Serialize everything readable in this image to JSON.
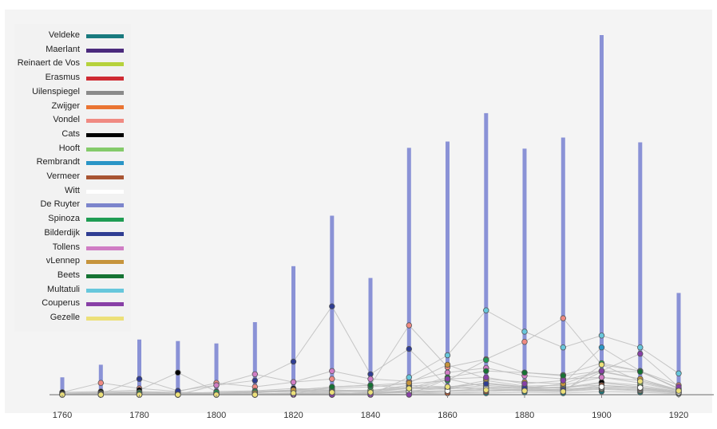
{
  "colors": {
    "background": "#ffffff",
    "frame": "#f4f4f4",
    "legend_bg": "#f2f2f2",
    "bar": "#8a92d6",
    "link": "#bdbdbd",
    "axis": "#888888"
  },
  "chart_data": {
    "type": "bar",
    "x_ticks": [
      "1760",
      "1780",
      "1800",
      "1820",
      "1840",
      "1860",
      "1880",
      "1900",
      "1920"
    ],
    "categories": [
      "1760",
      "1770",
      "1780",
      "1790",
      "1800",
      "1810",
      "1820",
      "1830",
      "1840",
      "1850",
      "1860",
      "1870",
      "1880",
      "1890",
      "1900",
      "1910",
      "1920"
    ],
    "ylim": [
      0,
      460
    ],
    "bar_series": "De Ruyter",
    "totals": [
      22,
      38,
      70,
      68,
      65,
      92,
      163,
      227,
      148,
      313,
      321,
      357,
      312,
      326,
      456,
      320,
      129
    ],
    "legend_position": "top-left",
    "series": [
      {
        "name": "Veldeke",
        "color": "#197a7e",
        "values": [
          0,
          1,
          0,
          1,
          0,
          1,
          2,
          1,
          2,
          3,
          2,
          2,
          3,
          2,
          4,
          3,
          1
        ]
      },
      {
        "name": "Maerlant",
        "color": "#4b2a7d",
        "values": [
          1,
          2,
          3,
          2,
          1,
          3,
          4,
          3,
          3,
          5,
          8,
          9,
          8,
          10,
          12,
          9,
          3
        ]
      },
      {
        "name": "Reinaert de Vos",
        "color": "#b6d23c",
        "values": [
          0,
          0,
          1,
          0,
          0,
          1,
          1,
          2,
          1,
          3,
          4,
          6,
          5,
          4,
          7,
          5,
          2
        ]
      },
      {
        "name": "Erasmus",
        "color": "#cf2b33",
        "values": [
          2,
          3,
          4,
          3,
          2,
          4,
          6,
          5,
          4,
          8,
          7,
          12,
          8,
          6,
          9,
          7,
          3
        ]
      },
      {
        "name": "Uilenspiegel",
        "color": "#8a8a8a",
        "values": [
          0,
          0,
          0,
          0,
          0,
          0,
          1,
          1,
          2,
          4,
          5,
          6,
          7,
          5,
          8,
          6,
          2
        ]
      },
      {
        "name": "Zwijger",
        "color": "#ea7432",
        "values": [
          1,
          2,
          2,
          1,
          2,
          3,
          4,
          6,
          5,
          12,
          10,
          14,
          10,
          8,
          15,
          10,
          4
        ]
      },
      {
        "name": "Vondel",
        "color": "#f08a82",
        "values": [
          3,
          15,
          8,
          4,
          15,
          10,
          16,
          20,
          12,
          88,
          35,
          45,
          67,
          97,
          38,
          30,
          12
        ]
      },
      {
        "name": "Cats",
        "color": "#000000",
        "values": [
          3,
          4,
          6,
          28,
          4,
          5,
          8,
          6,
          5,
          10,
          8,
          15,
          10,
          9,
          16,
          12,
          4
        ]
      },
      {
        "name": "Hooft",
        "color": "#84ca6a",
        "values": [
          1,
          2,
          3,
          2,
          1,
          3,
          5,
          4,
          6,
          8,
          9,
          18,
          11,
          12,
          22,
          15,
          5
        ]
      },
      {
        "name": "Rembrandt",
        "color": "#2a95c6",
        "values": [
          0,
          0,
          0,
          0,
          0,
          0,
          1,
          0,
          1,
          6,
          20,
          10,
          8,
          14,
          60,
          30,
          7
        ]
      },
      {
        "name": "Vermeer",
        "color": "#a85432",
        "values": [
          0,
          0,
          0,
          0,
          0,
          0,
          0,
          0,
          0,
          1,
          2,
          4,
          6,
          5,
          12,
          8,
          3
        ]
      },
      {
        "name": "Witt",
        "color": "#ffffff",
        "values": [
          0,
          1,
          1,
          0,
          1,
          1,
          2,
          1,
          2,
          4,
          5,
          8,
          6,
          7,
          10,
          9,
          3
        ]
      },
      {
        "name": "De Ruyter",
        "color": "#7c85cc",
        "values": [
          22,
          38,
          70,
          68,
          65,
          92,
          163,
          227,
          148,
          313,
          321,
          357,
          312,
          326,
          456,
          320,
          129
        ]
      },
      {
        "name": "Spinoza",
        "color": "#1f9c53",
        "values": [
          0,
          1,
          2,
          2,
          3,
          4,
          6,
          8,
          10,
          14,
          18,
          44,
          28,
          25,
          40,
          30,
          8
        ]
      },
      {
        "name": "Bilderdijk",
        "color": "#2f3d93",
        "values": [
          0,
          1,
          20,
          5,
          12,
          18,
          42,
          112,
          26,
          58,
          10,
          14,
          9,
          6,
          29,
          20,
          6
        ]
      },
      {
        "name": "Tollens",
        "color": "#d07dc4",
        "values": [
          0,
          0,
          0,
          0,
          12,
          26,
          16,
          30,
          20,
          17,
          28,
          34,
          24,
          20,
          22,
          18,
          6
        ]
      },
      {
        "name": "vLennep",
        "color": "#c6943c",
        "values": [
          0,
          0,
          0,
          0,
          0,
          2,
          6,
          10,
          12,
          15,
          38,
          20,
          16,
          14,
          30,
          20,
          6
        ]
      },
      {
        "name": "Beets",
        "color": "#157333",
        "values": [
          0,
          0,
          0,
          0,
          0,
          0,
          1,
          10,
          12,
          8,
          22,
          30,
          28,
          24,
          30,
          29,
          8
        ]
      },
      {
        "name": "Multatuli",
        "color": "#67c7dc",
        "values": [
          0,
          0,
          0,
          0,
          0,
          0,
          0,
          0,
          0,
          22,
          50,
          107,
          80,
          60,
          75,
          60,
          27
        ]
      },
      {
        "name": "Couperus",
        "color": "#8840a6",
        "values": [
          0,
          0,
          0,
          0,
          0,
          0,
          0,
          0,
          0,
          0,
          20,
          22,
          14,
          18,
          30,
          52,
          10
        ]
      },
      {
        "name": "Gezelle",
        "color": "#ece079",
        "values": [
          0,
          0,
          0,
          0,
          0,
          0,
          2,
          3,
          3,
          8,
          10,
          6,
          5,
          4,
          38,
          17,
          5
        ]
      }
    ]
  }
}
